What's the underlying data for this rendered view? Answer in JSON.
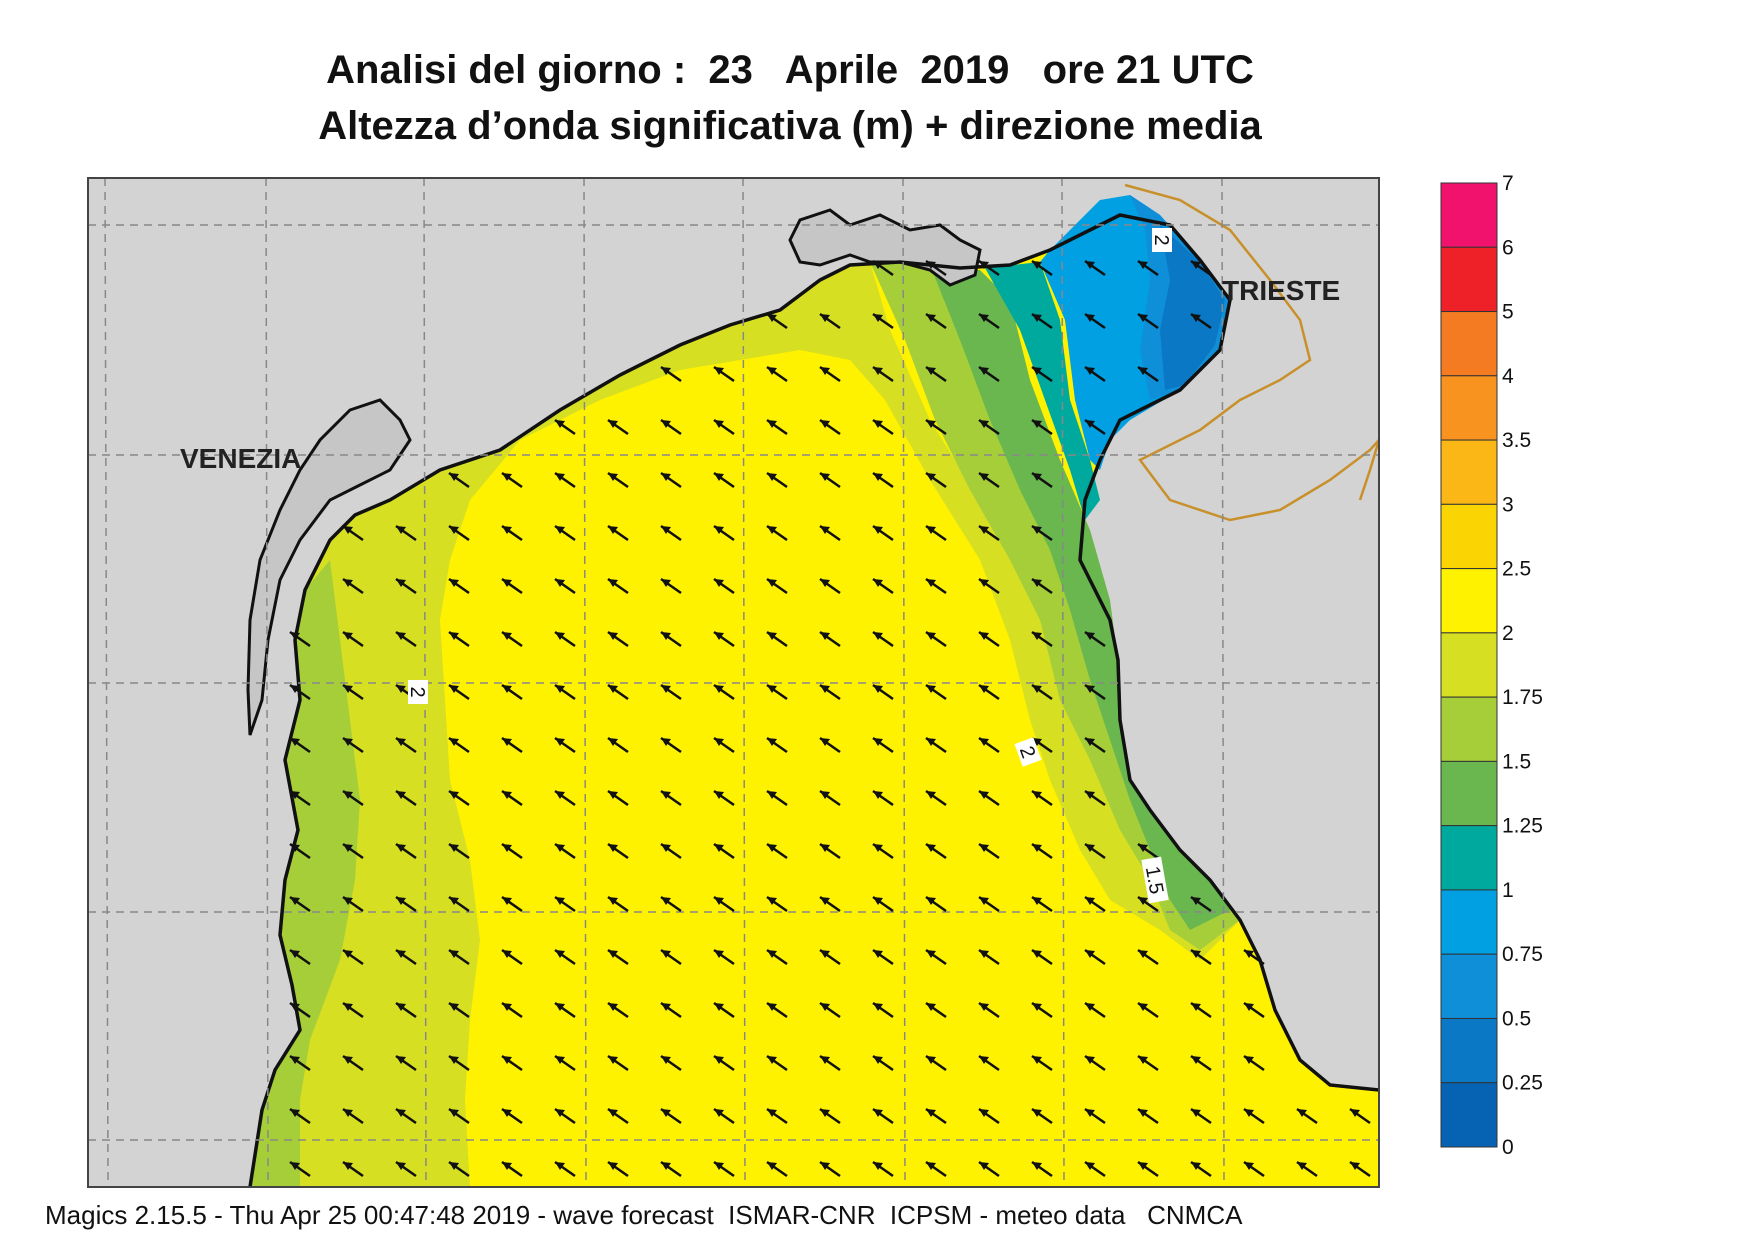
{
  "title_line1": "Analisi del giorno :  23   Aprile  2019   ore 21 UTC",
  "title_line2": "Altezza d’onda significativa (m) + direzione media",
  "footer": "Magics 2.15.5 - Thu Apr 25 00:47:48 2019 - wave forecast  ISMAR-CNR  ICPSM - meteo data   CNMCA",
  "cities": {
    "venezia": "VENEZIA",
    "trieste": "TRIESTE"
  },
  "contour_labels": {
    "left_2": "2",
    "mid_2": "2",
    "east_1_5": "1.5",
    "top_2": "2"
  },
  "legend": {
    "ticks": [
      "7",
      "6",
      "5",
      "4",
      "3.5",
      "3",
      "2.5",
      "2",
      "1.75",
      "1.5",
      "1.25",
      "1",
      "0.75",
      "0.5",
      "0.25",
      "0"
    ],
    "colors": [
      "#f0126c",
      "#ee2128",
      "#f47b22",
      "#f7931e",
      "#fbb715",
      "#fbd403",
      "#fff200",
      "#d7df23",
      "#a6ce39",
      "#6ab74f",
      "#00a99d",
      "#00a0e3",
      "#0f8fd8",
      "#0b78c5",
      "#0663b4"
    ]
  },
  "colors": {
    "land": "#d3d3d3",
    "sea_yellow": "#fff200",
    "sea_lime": "#d7df23",
    "sea_green_light": "#a6ce39",
    "sea_green": "#6ab74f",
    "sea_teal": "#00a99d",
    "sea_blue_light": "#00a0e3",
    "sea_blue": "#0f8fd8",
    "sea_blue_dark": "#0b78c5",
    "border": "#c8902a",
    "coast": "#111111"
  },
  "wave_direction": "north-west"
}
